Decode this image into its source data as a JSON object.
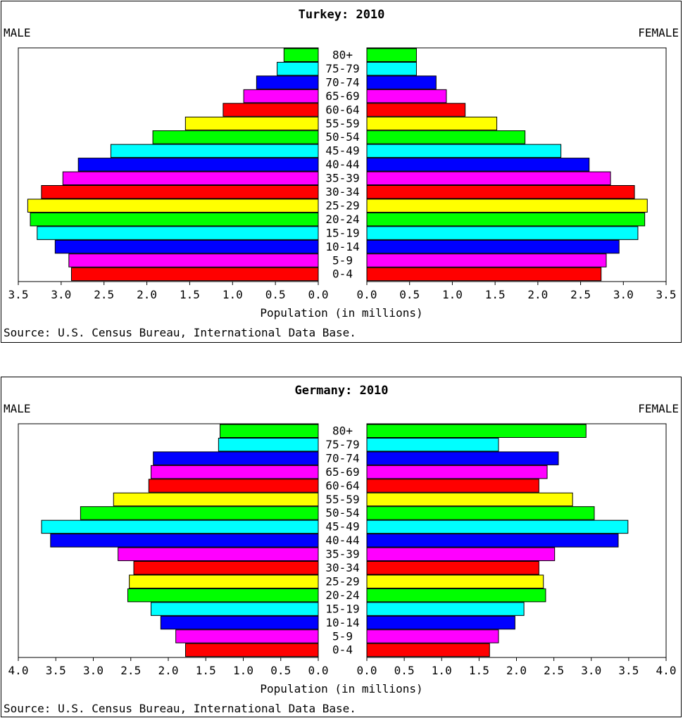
{
  "chart_data": [
    {
      "type": "bar",
      "orientation": "horizontal",
      "title": "Turkey: 2010",
      "left_label": "MALE",
      "right_label": "FEMALE",
      "xlabel": "Population (in millions)",
      "source": "Source: U.S. Census Bureau, International Data Base.",
      "xlim": [
        0,
        3.5
      ],
      "tick_step": 0.5,
      "tick_labels": [
        "0.0",
        "0.5",
        "1.0",
        "1.5",
        "2.0",
        "2.5",
        "3.0",
        "3.5"
      ],
      "categories": [
        "80+",
        "75-79",
        "70-74",
        "65-69",
        "60-64",
        "55-59",
        "50-54",
        "45-49",
        "40-44",
        "35-39",
        "30-34",
        "25-29",
        "20-24",
        "15-19",
        "10-14",
        "5-9",
        "0-4"
      ],
      "colors": [
        "#00ff00",
        "#00ffff",
        "#0000ff",
        "#ff00ff",
        "#ff0000",
        "#ffff00",
        "#00ff00",
        "#00ffff",
        "#0000ff",
        "#ff00ff",
        "#ff0000",
        "#ffff00",
        "#00ff00",
        "#00ffff",
        "#0000ff",
        "#ff00ff",
        "#ff0000"
      ],
      "series": [
        {
          "name": "MALE",
          "values": [
            0.4,
            0.48,
            0.72,
            0.87,
            1.11,
            1.55,
            1.93,
            2.42,
            2.8,
            2.98,
            3.23,
            3.39,
            3.36,
            3.28,
            3.07,
            2.91,
            2.88
          ]
        },
        {
          "name": "FEMALE",
          "values": [
            0.58,
            0.58,
            0.81,
            0.93,
            1.15,
            1.52,
            1.85,
            2.27,
            2.6,
            2.85,
            3.13,
            3.28,
            3.25,
            3.17,
            2.95,
            2.8,
            2.74
          ]
        }
      ]
    },
    {
      "type": "bar",
      "orientation": "horizontal",
      "title": "Germany: 2010",
      "left_label": "MALE",
      "right_label": "FEMALE",
      "xlabel": "Population (in millions)",
      "source": "Source: U.S. Census Bureau, International Data Base.",
      "xlim": [
        0,
        4.0
      ],
      "tick_step": 0.5,
      "tick_labels": [
        "0.0",
        "0.5",
        "1.0",
        "1.5",
        "2.0",
        "2.5",
        "3.0",
        "3.5",
        "4.0"
      ],
      "categories": [
        "80+",
        "75-79",
        "70-74",
        "65-69",
        "60-64",
        "55-59",
        "50-54",
        "45-49",
        "40-44",
        "35-39",
        "30-34",
        "25-29",
        "20-24",
        "15-19",
        "10-14",
        "5-9",
        "0-4"
      ],
      "colors": [
        "#00ff00",
        "#00ffff",
        "#0000ff",
        "#ff00ff",
        "#ff0000",
        "#ffff00",
        "#00ff00",
        "#00ffff",
        "#0000ff",
        "#ff00ff",
        "#ff0000",
        "#ffff00",
        "#00ff00",
        "#00ffff",
        "#0000ff",
        "#ff00ff",
        "#ff0000"
      ],
      "series": [
        {
          "name": "MALE",
          "values": [
            1.31,
            1.33,
            2.2,
            2.23,
            2.26,
            2.73,
            3.17,
            3.69,
            3.57,
            2.67,
            2.46,
            2.52,
            2.54,
            2.23,
            2.1,
            1.9,
            1.77
          ]
        },
        {
          "name": "FEMALE",
          "values": [
            2.93,
            1.76,
            2.56,
            2.41,
            2.3,
            2.75,
            3.04,
            3.49,
            3.36,
            2.51,
            2.3,
            2.36,
            2.39,
            2.1,
            1.98,
            1.76,
            1.64
          ]
        }
      ]
    }
  ]
}
